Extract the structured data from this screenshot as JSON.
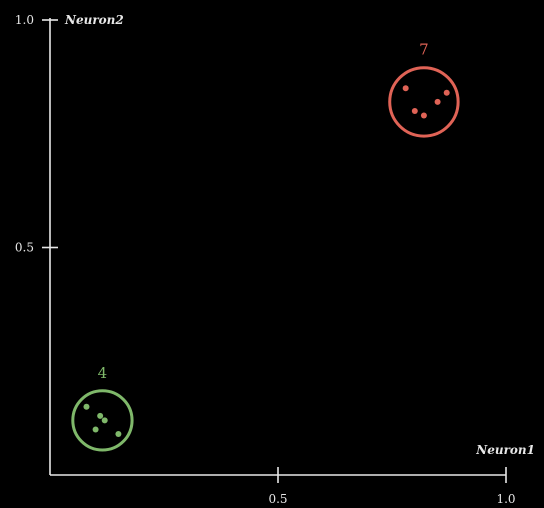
{
  "chart_data": {
    "type": "scatter",
    "title": "",
    "xlabel": "Neuron1",
    "ylabel": "Neuron2",
    "xlim": [
      0,
      1
    ],
    "ylim": [
      0,
      1
    ],
    "x_ticks": [
      {
        "value": 0.5,
        "label": "0.5"
      },
      {
        "value": 1.0,
        "label": "1.0"
      }
    ],
    "y_ticks": [
      {
        "value": 0.5,
        "label": "0.5"
      },
      {
        "value": 1.0,
        "label": "1.0"
      }
    ],
    "grid": false,
    "series": [
      {
        "name": "4",
        "color": "#7fb86a",
        "points": [
          {
            "x": 0.08,
            "y": 0.15
          },
          {
            "x": 0.11,
            "y": 0.13
          },
          {
            "x": 0.12,
            "y": 0.12
          },
          {
            "x": 0.1,
            "y": 0.1
          },
          {
            "x": 0.15,
            "y": 0.09
          }
        ],
        "circle_center": {
          "x": 0.115,
          "y": 0.12
        },
        "circle_radius": 0.065
      },
      {
        "name": "7",
        "color": "#e06356",
        "points": [
          {
            "x": 0.78,
            "y": 0.85
          },
          {
            "x": 0.8,
            "y": 0.8
          },
          {
            "x": 0.82,
            "y": 0.79
          },
          {
            "x": 0.85,
            "y": 0.82
          },
          {
            "x": 0.87,
            "y": 0.84
          }
        ],
        "circle_center": {
          "x": 0.82,
          "y": 0.82
        },
        "circle_radius": 0.075
      }
    ]
  }
}
